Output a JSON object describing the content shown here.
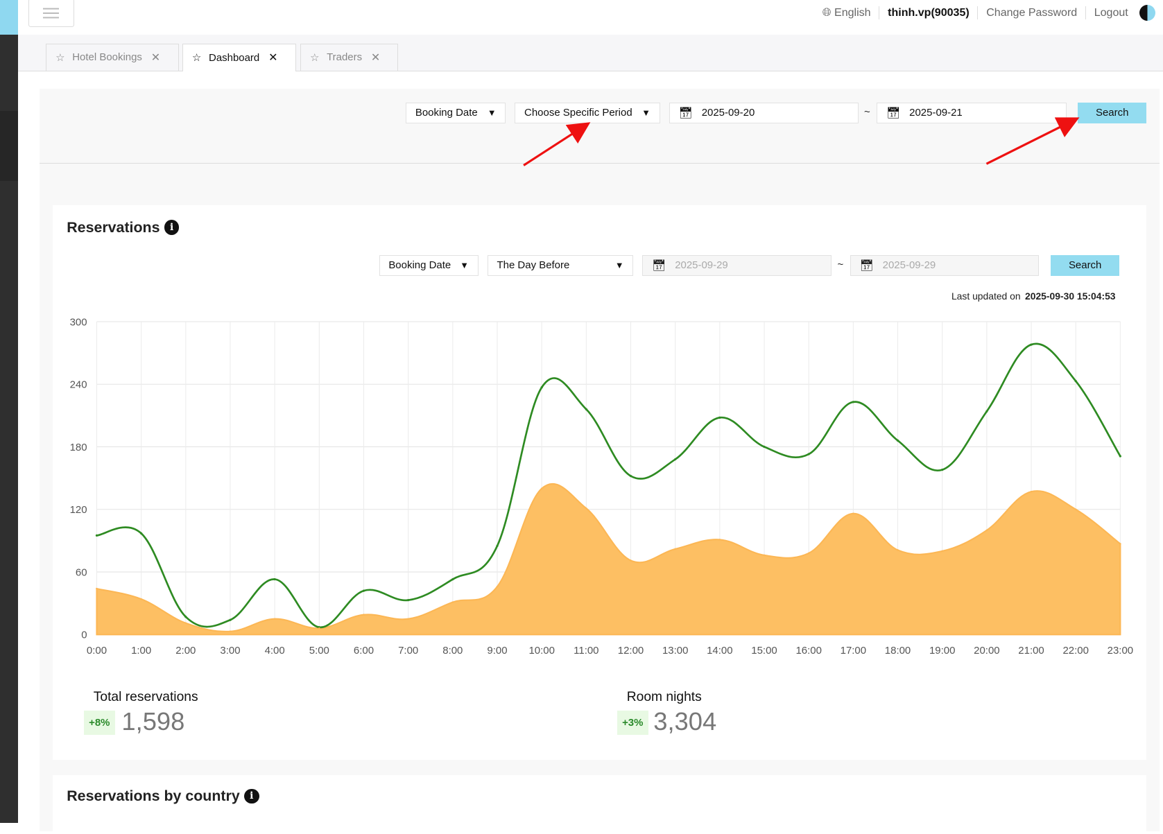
{
  "header": {
    "language": "English",
    "user": "thinh.vp(90035)",
    "change_password": "Change Password",
    "logout": "Logout"
  },
  "tabs": [
    {
      "label": "Hotel Bookings",
      "active": false
    },
    {
      "label": "Dashboard",
      "active": true
    },
    {
      "label": "Traders",
      "active": false
    }
  ],
  "filter": {
    "date_type": "Booking Date",
    "period": "Choose Specific Period",
    "from": "2025-09-20",
    "sep": "~",
    "to": "2025-09-21",
    "search": "Search"
  },
  "reservations": {
    "title": "Reservations",
    "filter": {
      "date_type": "Booking Date",
      "period": "The Day Before",
      "from": "2025-09-29",
      "sep": "~",
      "to": "2025-09-29",
      "search": "Search"
    },
    "last_updated_label": "Last updated on",
    "last_updated": "2025-09-30 15:04:53",
    "stats": [
      {
        "label": "Total reservations",
        "change": "+8%",
        "value": "1,598"
      },
      {
        "label": "Room nights",
        "change": "+3%",
        "value": "3,304"
      }
    ]
  },
  "country": {
    "title": "Reservations by country"
  },
  "colors": {
    "line": "#2e8b22",
    "area": "#fdbf63",
    "search": "#93dcf0",
    "arrow": "#ee1111"
  },
  "chart_data": {
    "type": "line",
    "x": [
      "0:00",
      "1:00",
      "2:00",
      "3:00",
      "4:00",
      "5:00",
      "6:00",
      "7:00",
      "8:00",
      "9:00",
      "10:00",
      "11:00",
      "12:00",
      "13:00",
      "14:00",
      "15:00",
      "16:00",
      "17:00",
      "18:00",
      "19:00",
      "20:00",
      "21:00",
      "22:00",
      "23:00"
    ],
    "yticks": [
      "0",
      "60",
      "120",
      "180",
      "240",
      "300"
    ],
    "ylim": [
      0,
      300
    ],
    "series": [
      {
        "name": "line",
        "style": "line",
        "values": [
          95,
          97,
          17,
          14,
          53,
          7,
          42,
          33,
          53,
          85,
          237,
          216,
          152,
          168,
          208,
          180,
          173,
          223,
          186,
          158,
          214,
          278,
          243,
          171
        ]
      },
      {
        "name": "area",
        "style": "area",
        "values": [
          44,
          34,
          11,
          3,
          15,
          6,
          19,
          15,
          31,
          46,
          140,
          121,
          71,
          82,
          91,
          76,
          78,
          116,
          81,
          80,
          100,
          137,
          120,
          87
        ]
      }
    ],
    "grid": true
  }
}
